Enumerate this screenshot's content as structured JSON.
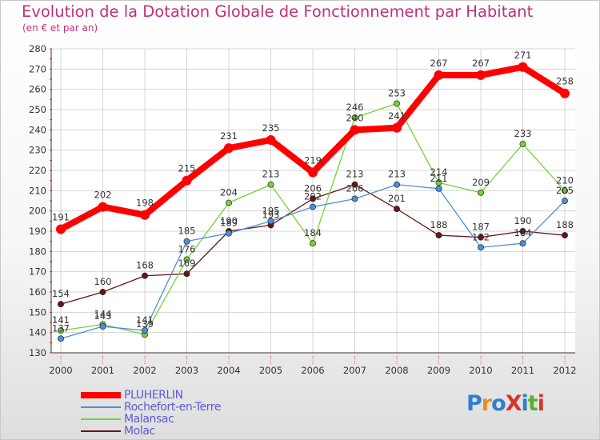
{
  "chart_data": {
    "type": "line",
    "title": "Evolution de la Dotation Globale de Fonctionnement par Habitant",
    "subtitle": "(en € et par an)",
    "xlabel": "",
    "ylabel": "",
    "x": [
      "2000",
      "2001",
      "2002",
      "2003",
      "2004",
      "2005",
      "2006",
      "2007",
      "2008",
      "2009",
      "2010",
      "2011",
      "2012"
    ],
    "ylim": [
      130,
      280
    ],
    "yticks": [
      130,
      140,
      150,
      160,
      170,
      180,
      190,
      200,
      210,
      220,
      230,
      240,
      250,
      260,
      270,
      280
    ],
    "grid": true,
    "legend_position": "bottom-left",
    "series": [
      {
        "name": "PLUHERLIN",
        "color": "#ff0000",
        "values": [
          191,
          202,
          198,
          215,
          231,
          235,
          219,
          240,
          241,
          267,
          267,
          271,
          258
        ]
      },
      {
        "name": "Rochefort-en-Terre",
        "color": "#4a90d9",
        "values": [
          137,
          143,
          141,
          185,
          189,
          195,
          202,
          206,
          213,
          211,
          182,
          184,
          205
        ]
      },
      {
        "name": "Malansac",
        "color": "#77d13a",
        "values": [
          141,
          144,
          139,
          176,
          204,
          213,
          184,
          246,
          253,
          214,
          209,
          233,
          210
        ]
      },
      {
        "name": "Molac",
        "color": "#6b1414",
        "values": [
          154,
          160,
          168,
          169,
          190,
          193,
          206,
          213,
          201,
          188,
          187,
          190,
          188
        ]
      }
    ]
  },
  "logo": {
    "text": "ProXiti"
  }
}
